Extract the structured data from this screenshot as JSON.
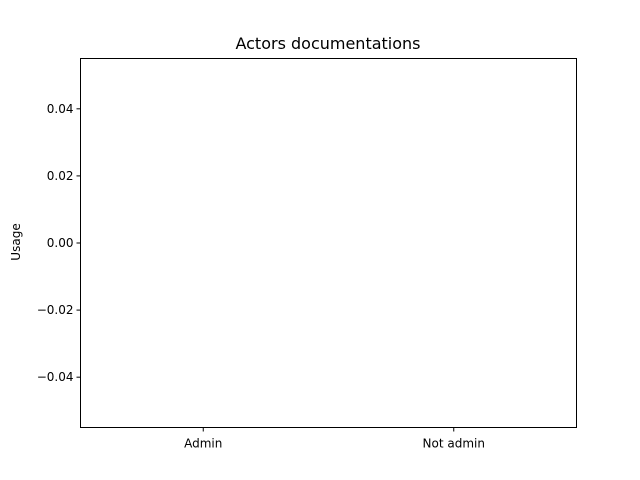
{
  "chart_data": {
    "type": "bar",
    "title": "Actors documentations",
    "xlabel": "",
    "ylabel": "Usage",
    "categories": [
      "Admin",
      "Not admin"
    ],
    "values": [
      0,
      0
    ],
    "ylim": [
      -0.055,
      0.055
    ],
    "yticks": [
      -0.04,
      -0.02,
      0.0,
      0.02,
      0.04
    ],
    "ytick_labels": [
      "−0.04",
      "−0.02",
      "0.00",
      "0.02",
      "0.04"
    ],
    "grid": false,
    "legend": "none",
    "colors": {
      "bar": "#1f77b4",
      "axes": "#000000",
      "background": "#ffffff"
    }
  }
}
